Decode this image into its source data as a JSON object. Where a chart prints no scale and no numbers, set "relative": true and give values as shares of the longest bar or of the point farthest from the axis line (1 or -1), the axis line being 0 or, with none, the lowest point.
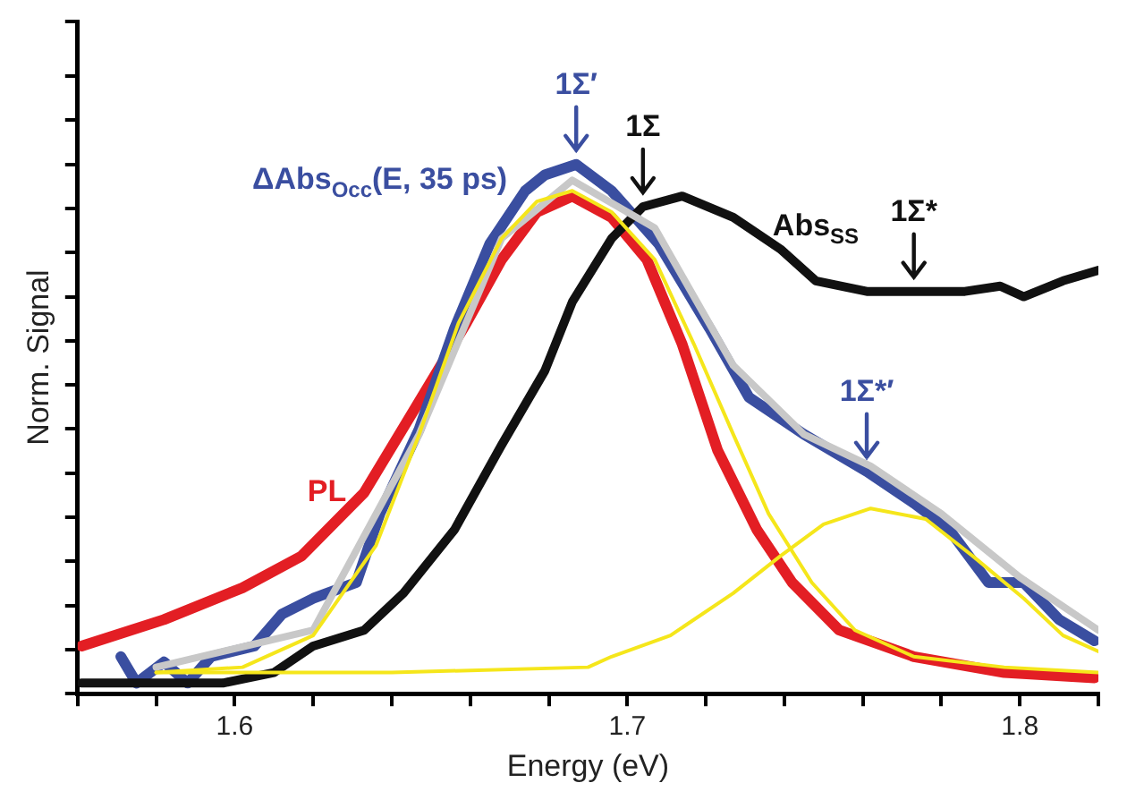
{
  "chart_data": {
    "type": "line",
    "relative": true,
    "xlabel": "Energy (eV)",
    "ylabel": "Norm. Signal",
    "xlim": [
      1.56,
      1.82
    ],
    "xticks": [
      {
        "value": 1.56,
        "label": null
      },
      {
        "value": 1.58,
        "label": null
      },
      1.6,
      {
        "value": 1.62,
        "label": null
      },
      {
        "value": 1.64,
        "label": null
      },
      {
        "value": 1.66,
        "label": null
      },
      {
        "value": 1.68,
        "label": null
      },
      1.7,
      {
        "value": 1.72,
        "label": null
      },
      {
        "value": 1.74,
        "label": null
      },
      {
        "value": 1.76,
        "label": null
      },
      {
        "value": 1.78,
        "label": null
      },
      1.8,
      {
        "value": 1.82,
        "label": null
      }
    ],
    "grid": false,
    "legend": false,
    "marker": "none",
    "line_style": "solid",
    "series": [
      {
        "name": "PL",
        "color": "#e31e24",
        "x": [
          1.561,
          1.582,
          1.602,
          1.617,
          1.633,
          1.646,
          1.659,
          1.668,
          1.677,
          1.686,
          1.696,
          1.705,
          1.714,
          1.723,
          1.733,
          1.742,
          1.754,
          1.773,
          1.796,
          1.819
        ],
        "values": [
          0.09,
          0.14,
          0.2,
          0.26,
          0.38,
          0.54,
          0.7,
          0.82,
          0.91,
          0.94,
          0.9,
          0.82,
          0.66,
          0.46,
          0.31,
          0.21,
          0.12,
          0.07,
          0.04,
          0.03
        ]
      },
      {
        "name": "ΔAbs$_{Occ}$(E, 35 ps)",
        "color": "#3a4ea0",
        "x": [
          1.571,
          1.575,
          1.582,
          1.588,
          1.594,
          1.605,
          1.612,
          1.62,
          1.631,
          1.637,
          1.647,
          1.656,
          1.665,
          1.674,
          1.679,
          1.687,
          1.696,
          1.708,
          1.721,
          1.731,
          1.745,
          1.761,
          1.773,
          1.782,
          1.792,
          1.801,
          1.81,
          1.819
        ],
        "values": [
          0.07,
          0.02,
          0.06,
          0.02,
          0.07,
          0.09,
          0.15,
          0.18,
          0.21,
          0.34,
          0.5,
          0.69,
          0.85,
          0.95,
          0.98,
          1.0,
          0.95,
          0.85,
          0.69,
          0.56,
          0.49,
          0.42,
          0.36,
          0.31,
          0.21,
          0.21,
          0.14,
          0.1
        ]
      },
      {
        "name": "Abs$_{SS}$",
        "color": "#111111",
        "x": [
          1.561,
          1.574,
          1.597,
          1.61,
          1.62,
          1.633,
          1.643,
          1.656,
          1.668,
          1.679,
          1.686,
          1.696,
          1.704,
          1.714,
          1.727,
          1.739,
          1.748,
          1.761,
          1.773,
          1.786,
          1.795,
          1.801,
          1.811,
          1.82
        ],
        "values": [
          0.02,
          0.02,
          0.02,
          0.04,
          0.09,
          0.12,
          0.19,
          0.31,
          0.47,
          0.61,
          0.74,
          0.86,
          0.92,
          0.94,
          0.9,
          0.84,
          0.78,
          0.76,
          0.76,
          0.76,
          0.77,
          0.75,
          0.78,
          0.8
        ]
      },
      {
        "color": "#c8c8c8",
        "x": [
          1.58,
          1.62,
          1.647,
          1.668,
          1.686,
          1.707,
          1.727,
          1.745,
          1.762,
          1.78,
          1.8,
          1.82
        ],
        "values": [
          0.05,
          0.12,
          0.49,
          0.86,
          0.97,
          0.88,
          0.62,
          0.49,
          0.43,
          0.34,
          0.22,
          0.12
        ]
      },
      {
        "color": "#f5e61b",
        "x": [
          1.58,
          1.602,
          1.62,
          1.636,
          1.647,
          1.657,
          1.668,
          1.677,
          1.686,
          1.696,
          1.707,
          1.717,
          1.727,
          1.736,
          1.747,
          1.758,
          1.773,
          1.796,
          1.82
        ],
        "values": [
          0.04,
          0.05,
          0.11,
          0.28,
          0.49,
          0.7,
          0.86,
          0.93,
          0.95,
          0.91,
          0.82,
          0.66,
          0.49,
          0.34,
          0.21,
          0.12,
          0.07,
          0.05,
          0.04
        ]
      },
      {
        "color": "#f5e61b",
        "x": [
          1.58,
          1.64,
          1.69,
          1.696,
          1.711,
          1.727,
          1.739,
          1.75,
          1.762,
          1.776,
          1.788,
          1.801,
          1.811,
          1.82
        ],
        "values": [
          0.04,
          0.04,
          0.05,
          0.07,
          0.11,
          0.19,
          0.26,
          0.32,
          0.35,
          0.33,
          0.26,
          0.18,
          0.11,
          0.08
        ]
      }
    ],
    "annotations": [
      {
        "text": "1Σ′",
        "x": 1.687,
        "y": 1.0
      },
      {
        "text": "1Σ",
        "x": 1.704,
        "y": 0.92
      },
      {
        "text": "1Σ*",
        "x": 1.773,
        "y": 0.76
      },
      {
        "text": "1Σ*′",
        "x": 1.761,
        "y": 0.42
      }
    ]
  }
}
